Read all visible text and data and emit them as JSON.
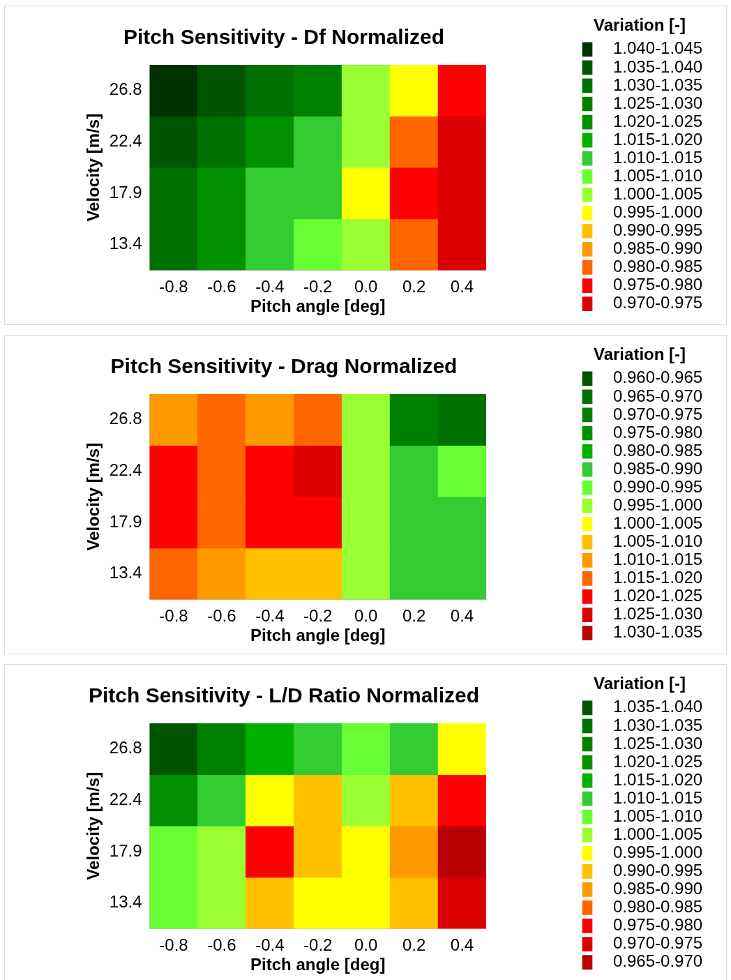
{
  "chart_data": [
    {
      "type": "heatmap",
      "title": "Pitch Sensitivity - Df Normalized",
      "xlabel": "Pitch angle [deg]",
      "ylabel": "Velocity [m/s]",
      "clabel": "Variation [-]",
      "categories": [
        "-0.8",
        "-0.6",
        "-0.4",
        "-0.2",
        "0.0",
        "0.2",
        "0.4"
      ],
      "y_categories": [
        "26.8",
        "22.4",
        "17.9",
        "13.4"
      ],
      "cells": [
        [
          1.043,
          1.038,
          1.033,
          1.028,
          1.002,
          0.996,
          0.977
        ],
        [
          1.038,
          1.033,
          1.022,
          1.013,
          1.002,
          0.981,
          0.972
        ],
        [
          1.033,
          1.022,
          1.013,
          1.012,
          0.999,
          0.977,
          0.971
        ],
        [
          1.032,
          1.022,
          1.012,
          1.007,
          1.002,
          0.983,
          0.971
        ]
      ],
      "clim": [
        1.045,
        0.97
      ],
      "cticks": [
        {
          "value": 1.0425,
          "label": "1.040-1.045"
        },
        {
          "value": 1.0375,
          "label": "1.035-1.040"
        },
        {
          "value": 1.0325,
          "label": "1.030-1.035"
        },
        {
          "value": 1.0275,
          "label": "1.025-1.030"
        },
        {
          "value": 1.0225,
          "label": "1.020-1.025"
        },
        {
          "value": 1.0175,
          "label": "1.015-1.020"
        },
        {
          "value": 1.0125,
          "label": "1.010-1.015"
        },
        {
          "value": 1.0075,
          "label": "1.005-1.010"
        },
        {
          "value": 1.0025,
          "label": "1.000-1.005"
        },
        {
          "value": 0.9975,
          "label": "0.995-1.000"
        },
        {
          "value": 0.9925,
          "label": "0.990-0.995"
        },
        {
          "value": 0.9875,
          "label": "0.985-0.990"
        },
        {
          "value": 0.9825,
          "label": "0.980-0.985"
        },
        {
          "value": 0.9775,
          "label": "0.975-0.980"
        },
        {
          "value": 0.9725,
          "label": "0.970-0.975"
        }
      ],
      "colors": [
        "#003300",
        "#005500",
        "#007000",
        "#008000",
        "#009000",
        "#00b000",
        "#33cc33",
        "#66ff33",
        "#99ff33",
        "#ffff00",
        "#ffc000",
        "#ff9900",
        "#ff6600",
        "#ff0000",
        "#dd0000"
      ]
    },
    {
      "type": "heatmap",
      "title": "Pitch Sensitivity - Drag Normalized",
      "xlabel": "Pitch angle [deg]",
      "ylabel": "Velocity [m/s]",
      "clabel": "Variation [-]",
      "categories": [
        "-0.8",
        "-0.6",
        "-0.4",
        "-0.2",
        "0.0",
        "0.2",
        "0.4"
      ],
      "y_categories": [
        "26.8",
        "22.4",
        "17.9",
        "13.4"
      ],
      "cells": [
        [
          1.012,
          1.017,
          1.013,
          1.016,
          0.998,
          0.973,
          0.968
        ],
        [
          1.022,
          1.019,
          1.023,
          1.026,
          0.998,
          0.989,
          0.992
        ],
        [
          1.022,
          1.016,
          1.021,
          1.021,
          0.999,
          0.986,
          0.987
        ],
        [
          1.016,
          1.011,
          1.009,
          1.008,
          0.999,
          0.987,
          0.987
        ]
      ],
      "clim": [
        0.96,
        1.035
      ],
      "cticks": [
        {
          "value": 0.9625,
          "label": "0.960-0.965"
        },
        {
          "value": 0.9675,
          "label": "0.965-0.970"
        },
        {
          "value": 0.9725,
          "label": "0.970-0.975"
        },
        {
          "value": 0.9775,
          "label": "0.975-0.980"
        },
        {
          "value": 0.9825,
          "label": "0.980-0.985"
        },
        {
          "value": 0.9875,
          "label": "0.985-0.990"
        },
        {
          "value": 0.9925,
          "label": "0.990-0.995"
        },
        {
          "value": 0.9975,
          "label": "0.995-1.000"
        },
        {
          "value": 1.0025,
          "label": "1.000-1.005"
        },
        {
          "value": 1.0075,
          "label": "1.005-1.010"
        },
        {
          "value": 1.0125,
          "label": "1.010-1.015"
        },
        {
          "value": 1.0175,
          "label": "1.015-1.020"
        },
        {
          "value": 1.0225,
          "label": "1.020-1.025"
        },
        {
          "value": 1.0275,
          "label": "1.025-1.030"
        },
        {
          "value": 1.0325,
          "label": "1.030-1.035"
        }
      ],
      "colors": [
        "#005500",
        "#007000",
        "#008000",
        "#009000",
        "#00b000",
        "#33cc33",
        "#66ff33",
        "#99ff33",
        "#ffff00",
        "#ffc000",
        "#ff9900",
        "#ff6600",
        "#ff0000",
        "#dd0000",
        "#bb0000"
      ]
    },
    {
      "type": "heatmap",
      "title": "Pitch Sensitivity - L/D Ratio Normalized",
      "xlabel": "Pitch angle [deg]",
      "ylabel": "Velocity [m/s]",
      "clabel": "Variation [-]",
      "categories": [
        "-0.8",
        "-0.6",
        "-0.4",
        "-0.2",
        "0.0",
        "0.2",
        "0.4"
      ],
      "y_categories": [
        "26.8",
        "22.4",
        "17.9",
        "13.4"
      ],
      "cells": [
        [
          1.037,
          1.028,
          1.018,
          1.012,
          1.006,
          1.013,
          0.996
        ],
        [
          1.022,
          1.012,
          0.998,
          0.991,
          1.001,
          0.993,
          0.977
        ],
        [
          1.007,
          1.003,
          0.977,
          0.991,
          0.997,
          0.988,
          0.967
        ],
        [
          1.007,
          1.001,
          0.991,
          0.997,
          0.997,
          0.993,
          0.971
        ]
      ],
      "clim": [
        1.04,
        0.965
      ],
      "cticks": [
        {
          "value": 1.0375,
          "label": "1.035-1.040"
        },
        {
          "value": 1.0325,
          "label": "1.030-1.035"
        },
        {
          "value": 1.0275,
          "label": "1.025-1.030"
        },
        {
          "value": 1.0225,
          "label": "1.020-1.025"
        },
        {
          "value": 1.0175,
          "label": "1.015-1.020"
        },
        {
          "value": 1.0125,
          "label": "1.010-1.015"
        },
        {
          "value": 1.0075,
          "label": "1.005-1.010"
        },
        {
          "value": 1.0025,
          "label": "1.000-1.005"
        },
        {
          "value": 0.9975,
          "label": "0.995-1.000"
        },
        {
          "value": 0.9925,
          "label": "0.990-0.995"
        },
        {
          "value": 0.9875,
          "label": "0.985-0.990"
        },
        {
          "value": 0.9825,
          "label": "0.980-0.985"
        },
        {
          "value": 0.9775,
          "label": "0.975-0.980"
        },
        {
          "value": 0.9725,
          "label": "0.970-0.975"
        },
        {
          "value": 0.9675,
          "label": "0.965-0.970"
        }
      ],
      "colors": [
        "#005500",
        "#007000",
        "#008000",
        "#009000",
        "#00b000",
        "#33cc33",
        "#66ff33",
        "#99ff33",
        "#ffff00",
        "#ffc000",
        "#ff9900",
        "#ff6600",
        "#ff0000",
        "#dd0000",
        "#bb0000"
      ]
    }
  ]
}
